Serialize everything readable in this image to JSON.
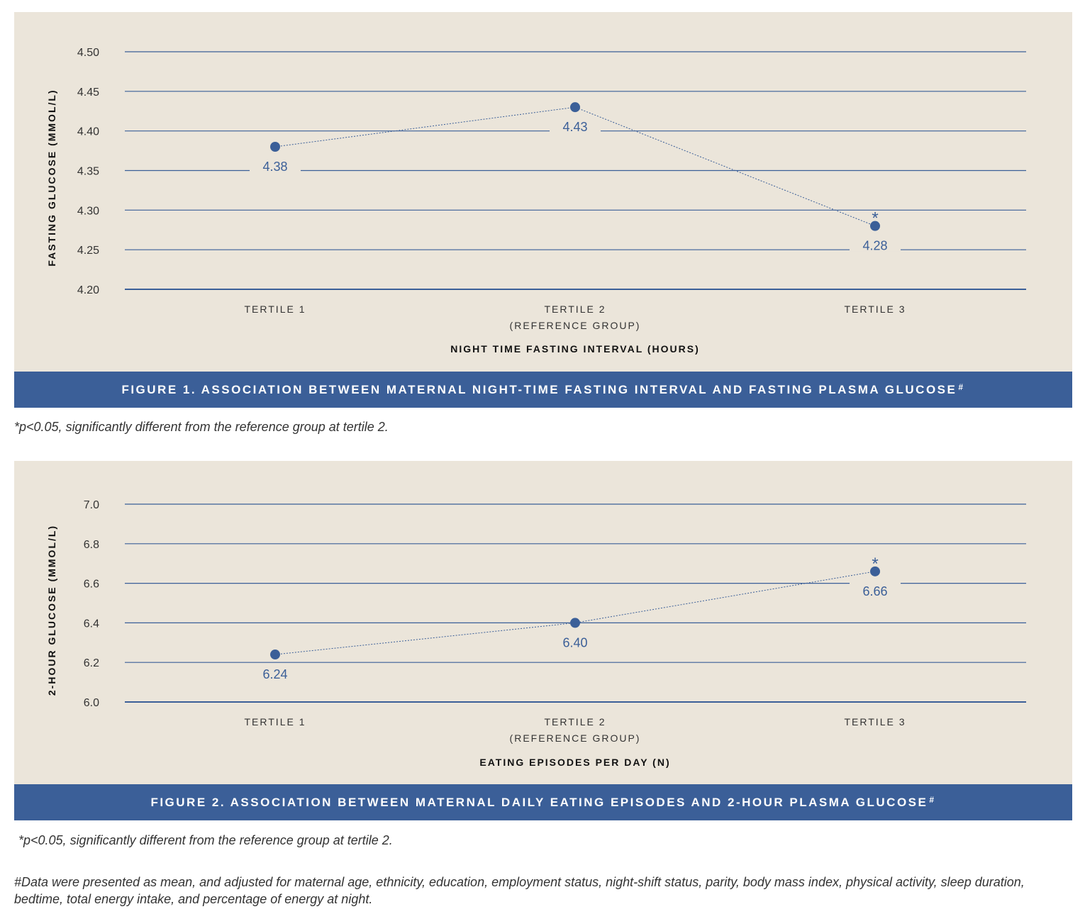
{
  "charts": [
    {
      "id": "fig1",
      "chart_data": {
        "type": "line",
        "categories": [
          "TERTILE 1",
          "TERTILE 2",
          "TERTILE 3"
        ],
        "category_sublabels": [
          "",
          "(REFERENCE GROUP)",
          ""
        ],
        "values": [
          4.38,
          4.43,
          4.28
        ],
        "data_labels": [
          "4.38",
          "4.43",
          "4.28"
        ],
        "label_position": [
          "below",
          "below",
          "below"
        ],
        "significant": [
          false,
          false,
          true
        ],
        "significance_marker": "*",
        "xlabel": "NIGHT TIME FASTING INTERVAL (HOURS)",
        "ylabel": "FASTING GLUCOSE (MMOL/L)",
        "ylim": [
          4.2,
          4.5
        ],
        "yticks": [
          "4.20",
          "4.25",
          "4.30",
          "4.35",
          "4.40",
          "4.45",
          "4.50"
        ],
        "grid": true,
        "color": "#3b5f98"
      },
      "caption": "FIGURE 1. ASSOCIATION BETWEEN MATERNAL NIGHT-TIME FASTING INTERVAL AND FASTING PLASMA GLUCOSE",
      "caption_sup": "#",
      "note": "*p<0.05, significantly different from the reference group at tertile 2."
    },
    {
      "id": "fig2",
      "chart_data": {
        "type": "line",
        "categories": [
          "TERTILE 1",
          "TERTILE 2",
          "TERTILE 3"
        ],
        "category_sublabels": [
          "",
          "(REFERENCE GROUP)",
          ""
        ],
        "values": [
          6.24,
          6.4,
          6.66
        ],
        "data_labels": [
          "6.24",
          "6.40",
          "6.66"
        ],
        "label_position": [
          "below",
          "below",
          "below"
        ],
        "significant": [
          false,
          false,
          true
        ],
        "significance_marker": "*",
        "xlabel": "EATING EPISODES PER DAY (N)",
        "ylabel": "2-HOUR GLUCOSE (MMOL/L)",
        "ylim": [
          6.0,
          7.0
        ],
        "yticks": [
          "6.0",
          "6.2",
          "6.4",
          "6.6",
          "6.8",
          "7.0"
        ],
        "grid": true,
        "color": "#3b5f98"
      },
      "caption": "FIGURE 2. ASSOCIATION BETWEEN MATERNAL DAILY EATING EPISODES AND 2-HOUR PLASMA GLUCOSE",
      "caption_sup": "#",
      "note": "*p<0.05, significantly different from the reference group at tertile 2."
    }
  ],
  "footnote": "#Data were presented as mean, and adjusted for maternal age, ethnicity, education, employment status, night-shift status, parity, body mass index, physical activity, sleep duration, bedtime, total energy intake, and percentage of energy at night."
}
